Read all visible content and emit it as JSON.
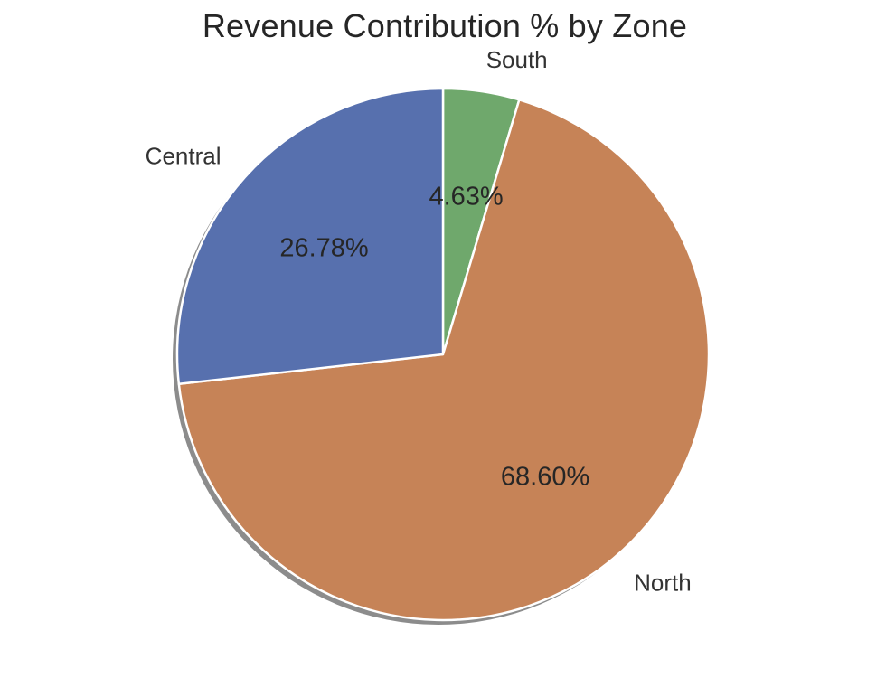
{
  "chart_data": {
    "type": "pie",
    "title": "Revenue Contribution % by Zone",
    "categories": [
      "South",
      "North",
      "Central"
    ],
    "values": [
      4.63,
      68.6,
      26.78
    ],
    "value_labels": [
      "4.63%",
      "68.60%",
      "26.78%"
    ],
    "colors": [
      "#6FA86C",
      "#C68357",
      "#5770AE"
    ],
    "start_angle_deg": 90,
    "direction": "clockwise",
    "shadow": true,
    "legend": false
  }
}
